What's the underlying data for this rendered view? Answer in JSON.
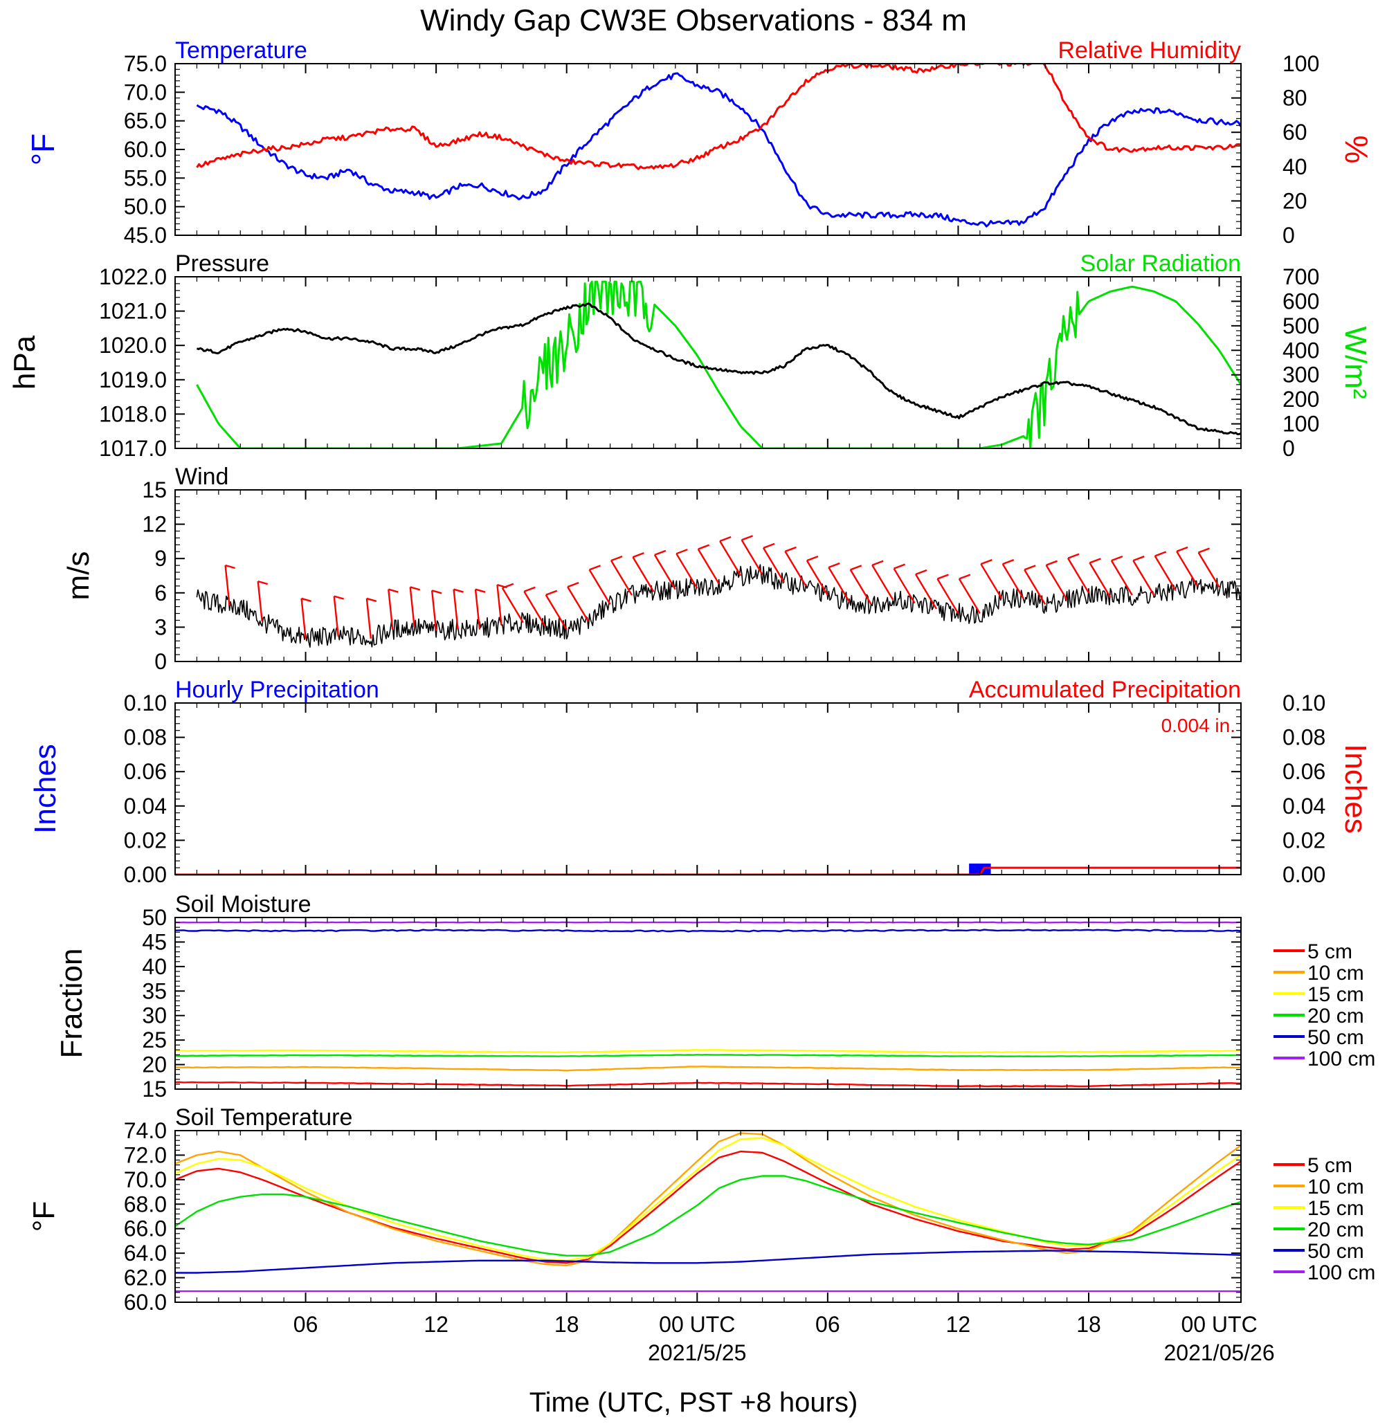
{
  "page": {
    "title": "Windy Gap CW3E Observations - 834 m",
    "xlabel": "Time (UTC, PST +8 hours)",
    "x_ticks": [
      "06",
      "12",
      "18",
      "00 UTC",
      "06",
      "12",
      "18",
      "00 UTC"
    ],
    "date_labels": [
      "2021/5/25",
      "2021/05/26"
    ]
  },
  "colors": {
    "blue": "#0000ff",
    "red": "#ff0000",
    "green": "#00e000",
    "black": "#000000",
    "orange": "#ffa500",
    "yellow": "#ffff00",
    "navy": "#0000c8",
    "purple": "#a020f0"
  },
  "chart_data": [
    {
      "type": "line",
      "panel": "temperature_rh",
      "title_left": "Temperature",
      "title_right": "Relative Humidity",
      "ylabel_left": "°F",
      "ylabel_right": "%",
      "ylim_left": [
        45,
        75
      ],
      "ylim_right": [
        0,
        100
      ],
      "yticks_left": [
        "75.0",
        "70.0",
        "65.0",
        "60.0",
        "55.0",
        "50.0",
        "45.0"
      ],
      "yticks_right": [
        "100",
        "80",
        "60",
        "40",
        "20",
        "0"
      ],
      "x_hours": [
        1,
        2,
        3,
        4,
        5,
        6,
        7,
        8,
        9,
        10,
        11,
        12,
        13,
        14,
        15,
        16,
        17,
        18,
        19,
        20,
        21,
        22,
        23,
        24,
        25,
        26,
        27,
        28,
        29,
        30,
        31,
        32,
        33,
        34,
        35,
        36,
        37,
        38,
        39,
        40,
        41,
        42,
        43,
        44,
        45,
        46,
        47,
        48,
        49
      ],
      "series": [
        {
          "name": "Temperature",
          "axis": "left",
          "color": "blue",
          "values": [
            67.5,
            66.8,
            64,
            60.5,
            57.5,
            55.5,
            55,
            56.5,
            54,
            52.7,
            52.5,
            51.5,
            53.5,
            53.8,
            52.5,
            51.5,
            53,
            57.5,
            61.5,
            65,
            68.5,
            71.5,
            73,
            71.2,
            70,
            67.5,
            63.5,
            57,
            50.5,
            48.5,
            48.5,
            48.5,
            48.5,
            48.6,
            48.5,
            47.5,
            47,
            47,
            47.3,
            50,
            56,
            61.5,
            65,
            66.5,
            66.8,
            66.5,
            65.2,
            64.8,
            64.5
          ]
        },
        {
          "name": "Relative Humidity",
          "axis": "right",
          "color": "red",
          "values": [
            40,
            44,
            47,
            50,
            51,
            53,
            56,
            57,
            60,
            62,
            62,
            52,
            55,
            59,
            57,
            52,
            47,
            43,
            42,
            41,
            40,
            39,
            41,
            45,
            51,
            56,
            63,
            77,
            90,
            97,
            99,
            99,
            98,
            96,
            97,
            100,
            100,
            100,
            100,
            100,
            75,
            57,
            50,
            50,
            51,
            51,
            51,
            51,
            52
          ]
        }
      ]
    },
    {
      "type": "line",
      "panel": "pressure_solar",
      "title_left": "Pressure",
      "title_right": "Solar Radiation",
      "ylabel_left": "hPa",
      "ylabel_right": "W/m²",
      "ylim_left": [
        1017,
        1022
      ],
      "ylim_right": [
        0,
        700
      ],
      "yticks_left": [
        "1022.0",
        "1021.0",
        "1020.0",
        "1019.0",
        "1018.0",
        "1017.0"
      ],
      "yticks_right": [
        "700",
        "600",
        "500",
        "400",
        "300",
        "200",
        "100",
        "0"
      ],
      "x_hours": [
        1,
        2,
        3,
        4,
        5,
        6,
        7,
        8,
        9,
        10,
        11,
        12,
        13,
        14,
        15,
        16,
        17,
        18,
        19,
        20,
        21,
        22,
        23,
        24,
        25,
        26,
        27,
        28,
        29,
        30,
        31,
        32,
        33,
        34,
        35,
        36,
        37,
        38,
        39,
        40,
        41,
        42,
        43,
        44,
        45,
        46,
        47,
        48,
        49
      ],
      "series": [
        {
          "name": "Pressure",
          "axis": "left",
          "color": "black",
          "values": [
            1019.9,
            1019.8,
            1020.1,
            1020.3,
            1020.5,
            1020.4,
            1020.2,
            1020.2,
            1020.1,
            1019.9,
            1019.9,
            1019.8,
            1020,
            1020.3,
            1020.5,
            1020.6,
            1020.9,
            1021.1,
            1021.2,
            1020.8,
            1020.2,
            1019.9,
            1019.6,
            1019.4,
            1019.3,
            1019.2,
            1019.2,
            1019.4,
            1019.9,
            1020,
            1019.7,
            1019.2,
            1018.6,
            1018.3,
            1018.1,
            1017.9,
            1018.2,
            1018.5,
            1018.7,
            1018.9,
            1018.9,
            1018.8,
            1018.6,
            1018.4,
            1018.2,
            1017.9,
            1017.6,
            1017.5,
            1017.4
          ]
        },
        {
          "name": "Solar Radiation",
          "axis": "right",
          "color": "green",
          "values": [
            260,
            100,
            0,
            0,
            0,
            0,
            0,
            0,
            0,
            0,
            0,
            0,
            0,
            10,
            20,
            170,
            330,
            420,
            620,
            640,
            620,
            590,
            500,
            380,
            230,
            90,
            0,
            0,
            0,
            0,
            0,
            0,
            0,
            0,
            0,
            0,
            0,
            15,
            50,
            200,
            480,
            600,
            640,
            660,
            640,
            600,
            510,
            400,
            260
          ]
        }
      ]
    },
    {
      "type": "line",
      "panel": "wind",
      "title_left": "Wind",
      "ylabel_left": "m/s",
      "ylim_left": [
        0,
        15
      ],
      "yticks_left": [
        "15",
        "12",
        "9",
        "6",
        "3",
        "0"
      ],
      "x_hours": [
        1,
        2,
        3,
        4,
        5,
        6,
        7,
        8,
        9,
        10,
        11,
        12,
        13,
        14,
        15,
        16,
        17,
        18,
        19,
        20,
        21,
        22,
        23,
        24,
        25,
        26,
        27,
        28,
        29,
        30,
        31,
        32,
        33,
        34,
        35,
        36,
        37,
        38,
        39,
        40,
        41,
        42,
        43,
        44,
        45,
        46,
        47,
        48,
        49
      ],
      "series": [
        {
          "name": "Wind speed",
          "axis": "left",
          "color": "black",
          "values": [
            5.5,
            5,
            4.8,
            3.5,
            2.5,
            2,
            2.2,
            2.2,
            2,
            2.8,
            3,
            2.7,
            2.8,
            2.8,
            3.2,
            3.4,
            3.1,
            2.8,
            3.5,
            5,
            5.8,
            6.1,
            6.3,
            6.4,
            6.8,
            7.5,
            7.6,
            6.9,
            6.6,
            5.8,
            5.2,
            5,
            5.4,
            5.1,
            4.6,
            4.2,
            4.2,
            5.5,
            5.5,
            5,
            5.4,
            6,
            5.6,
            5.8,
            5.8,
            6.2,
            6.6,
            6.5,
            6.3
          ]
        }
      ],
      "barbs": {
        "color": "red",
        "hours": [
          2.5,
          4,
          6,
          7.5,
          9,
          10,
          11,
          12,
          13,
          14,
          15,
          16,
          17,
          18,
          19,
          20,
          21,
          22,
          23,
          24,
          25,
          26,
          27,
          28,
          29,
          30,
          31,
          32,
          33,
          34,
          35,
          36,
          37,
          38,
          39,
          40,
          41,
          42,
          43,
          44,
          45,
          46,
          47,
          48
        ]
      }
    },
    {
      "type": "bar",
      "panel": "precipitation",
      "title_left": "Hourly Precipitation",
      "title_right": "Accumulated Precipitation",
      "accumulated_text": "0.004 in.",
      "ylabel_left": "Inches",
      "ylabel_right": "Inches",
      "ylim_left": [
        0,
        0.1
      ],
      "ylim_right": [
        0,
        0.1
      ],
      "yticks_left": [
        "0.10",
        "0.08",
        "0.06",
        "0.04",
        "0.02",
        "0.00"
      ],
      "yticks_right": [
        "0.10",
        "0.08",
        "0.06",
        "0.04",
        "0.02",
        "0.00"
      ],
      "hourly": [
        {
          "hour": 37,
          "value": 0.004
        }
      ],
      "accumulated": {
        "color": "red",
        "points": [
          [
            0,
            0
          ],
          [
            37,
            0
          ],
          [
            37.2,
            0.004
          ],
          [
            49,
            0.004
          ]
        ]
      }
    },
    {
      "type": "line",
      "panel": "soil_moisture",
      "title_left": "Soil Moisture",
      "ylabel_left": "Fraction",
      "ylim_left": [
        15,
        50
      ],
      "yticks_left": [
        "50",
        "45",
        "40",
        "35",
        "30",
        "25",
        "20",
        "15"
      ],
      "x_hours": [
        0,
        6,
        12,
        18,
        24,
        30,
        36,
        42,
        48,
        49
      ],
      "series": [
        {
          "name": "5 cm",
          "color": "red",
          "values": [
            16.4,
            16.3,
            16,
            15.7,
            16.3,
            16,
            15.6,
            15.6,
            16.2,
            16.2
          ]
        },
        {
          "name": "10 cm",
          "color": "orange",
          "values": [
            19.4,
            19.5,
            19.2,
            18.8,
            19.6,
            19.3,
            18.9,
            18.9,
            19.4,
            19.4
          ]
        },
        {
          "name": "15 cm",
          "color": "yellow",
          "values": [
            22.8,
            22.9,
            22.7,
            22.5,
            23,
            22.8,
            22.5,
            22.6,
            22.8,
            22.8
          ]
        },
        {
          "name": "20 cm",
          "color": "green",
          "values": [
            21.8,
            21.9,
            21.8,
            21.7,
            22,
            21.9,
            21.7,
            21.7,
            21.9,
            21.9
          ]
        },
        {
          "name": "50 cm",
          "color": "navy",
          "values": [
            47.3,
            47.3,
            47.4,
            47.3,
            47.2,
            47.3,
            47.4,
            47.4,
            47.3,
            47.3
          ]
        },
        {
          "name": "100 cm",
          "color": "purple",
          "values": [
            49,
            49,
            49,
            49,
            49,
            49,
            49,
            49,
            49,
            49
          ]
        }
      ]
    },
    {
      "type": "line",
      "panel": "soil_temperature",
      "title_left": "Soil Temperature",
      "ylabel_left": "°F",
      "ylim_left": [
        60,
        74
      ],
      "yticks_left": [
        "74.0",
        "72.0",
        "70.0",
        "68.0",
        "66.0",
        "64.0",
        "62.0",
        "60.0"
      ],
      "x_hours": [
        0,
        1,
        2,
        3,
        4,
        5,
        6,
        8,
        10,
        12,
        14,
        16,
        17,
        18,
        19,
        20,
        22,
        24,
        25,
        26,
        27,
        28,
        29,
        30,
        32,
        34,
        36,
        38,
        40,
        41,
        42,
        44,
        46,
        48,
        49
      ],
      "series": [
        {
          "name": "5 cm",
          "color": "red",
          "values": [
            70,
            70.7,
            70.9,
            70.6,
            70,
            69.3,
            68.6,
            67.3,
            66.1,
            65.2,
            64.4,
            63.6,
            63.3,
            63.2,
            63.5,
            64.6,
            67.5,
            70.5,
            71.8,
            72.3,
            72.2,
            71.5,
            70.6,
            69.7,
            68,
            66.8,
            65.8,
            65,
            64.5,
            64.3,
            64.4,
            65.5,
            67.8,
            70.3,
            71.5
          ]
        },
        {
          "name": "10 cm",
          "color": "orange",
          "values": [
            71.3,
            72,
            72.3,
            72,
            71,
            70,
            69,
            67.3,
            66,
            65,
            64.2,
            63.4,
            63.1,
            63,
            63.4,
            64.8,
            68.2,
            71.5,
            73.1,
            73.8,
            73.7,
            72.8,
            71.6,
            70.5,
            68.6,
            67.1,
            66,
            65.1,
            64.3,
            64,
            64.2,
            65.8,
            68.7,
            71.5,
            72.8
          ]
        },
        {
          "name": "15 cm",
          "color": "yellow",
          "values": [
            70.5,
            71.3,
            71.7,
            71.6,
            71,
            70.2,
            69.3,
            67.8,
            66.5,
            65.5,
            64.6,
            63.8,
            63.5,
            63.4,
            63.7,
            64.8,
            67.8,
            70.8,
            72.4,
            73.3,
            73.4,
            72.8,
            71.8,
            70.9,
            69.2,
            67.8,
            66.7,
            65.8,
            64.9,
            64.6,
            64.6,
            65.7,
            68.2,
            70.8,
            72
          ]
        },
        {
          "name": "20 cm",
          "color": "green",
          "values": [
            66.2,
            67.4,
            68.2,
            68.6,
            68.8,
            68.8,
            68.6,
            67.8,
            66.8,
            65.9,
            65,
            64.3,
            64,
            63.8,
            63.8,
            64.1,
            65.6,
            67.9,
            69.3,
            70,
            70.3,
            70.3,
            69.9,
            69.3,
            68.2,
            67.3,
            66.5,
            65.7,
            65,
            64.8,
            64.7,
            65.1,
            66.3,
            67.6,
            68.2
          ]
        },
        {
          "name": "50 cm",
          "color": "navy",
          "values": [
            62.4,
            62.4,
            62.45,
            62.5,
            62.6,
            62.7,
            62.8,
            63,
            63.2,
            63.3,
            63.4,
            63.4,
            63.4,
            63.35,
            63.3,
            63.25,
            63.2,
            63.2,
            63.25,
            63.3,
            63.4,
            63.5,
            63.6,
            63.7,
            63.9,
            64,
            64.1,
            64.15,
            64.2,
            64.2,
            64.15,
            64.1,
            64,
            63.9,
            63.85
          ]
        },
        {
          "name": "100 cm",
          "color": "purple",
          "values": [
            60.9,
            60.9,
            60.9,
            60.9,
            60.9,
            60.9,
            60.9,
            60.9,
            60.9,
            60.9,
            60.9,
            60.9,
            60.9,
            60.9,
            60.9,
            60.9,
            60.9,
            60.9,
            60.9,
            60.9,
            60.9,
            60.9,
            60.9,
            60.9,
            60.9,
            60.9,
            60.9,
            60.9,
            60.9,
            60.9,
            60.9,
            60.9,
            60.9,
            60.9,
            60.9
          ]
        }
      ]
    }
  ]
}
